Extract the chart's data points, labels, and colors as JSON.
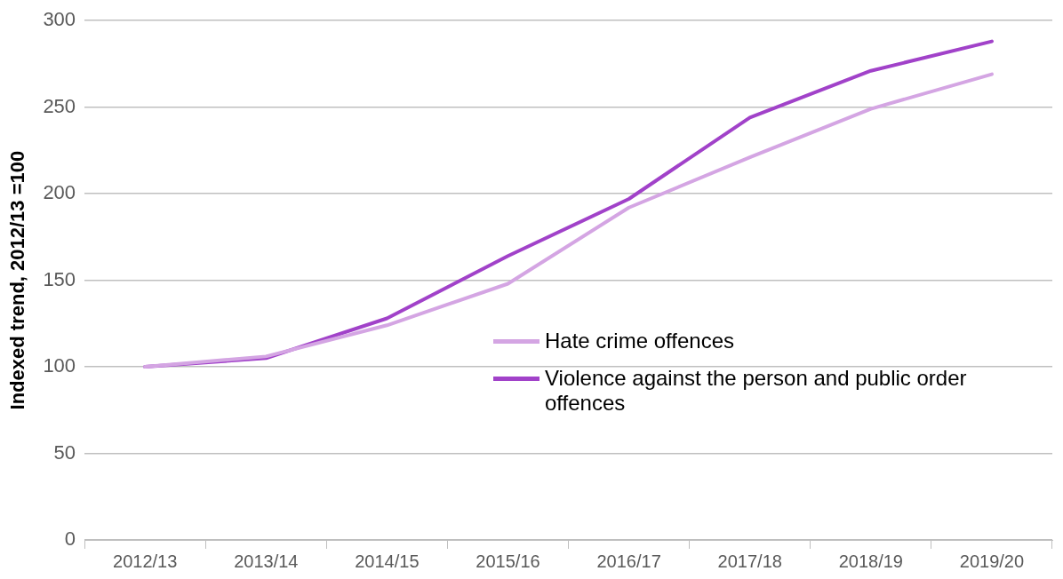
{
  "chart_data": {
    "type": "line",
    "ylabel": "Indexed trend, 2012/13 =100",
    "categories": [
      "2012/13",
      "2013/14",
      "2014/15",
      "2015/16",
      "2016/17",
      "2017/18",
      "2018/19",
      "2019/20"
    ],
    "series": [
      {
        "name": "Hate crime offences",
        "color": "#d4a5e3",
        "values": [
          100,
          106,
          124,
          148,
          192,
          221,
          249,
          269
        ]
      },
      {
        "name": "Violence against the person and public order offences",
        "color": "#a142c9",
        "values": [
          100,
          105,
          128,
          164,
          197,
          244,
          271,
          288
        ]
      }
    ],
    "ylim": [
      0,
      300
    ],
    "yticks": [
      0,
      50,
      100,
      150,
      200,
      250,
      300
    ],
    "grid": "y",
    "legend": "bottom right",
    "marker": "none",
    "line_style": "solid"
  }
}
